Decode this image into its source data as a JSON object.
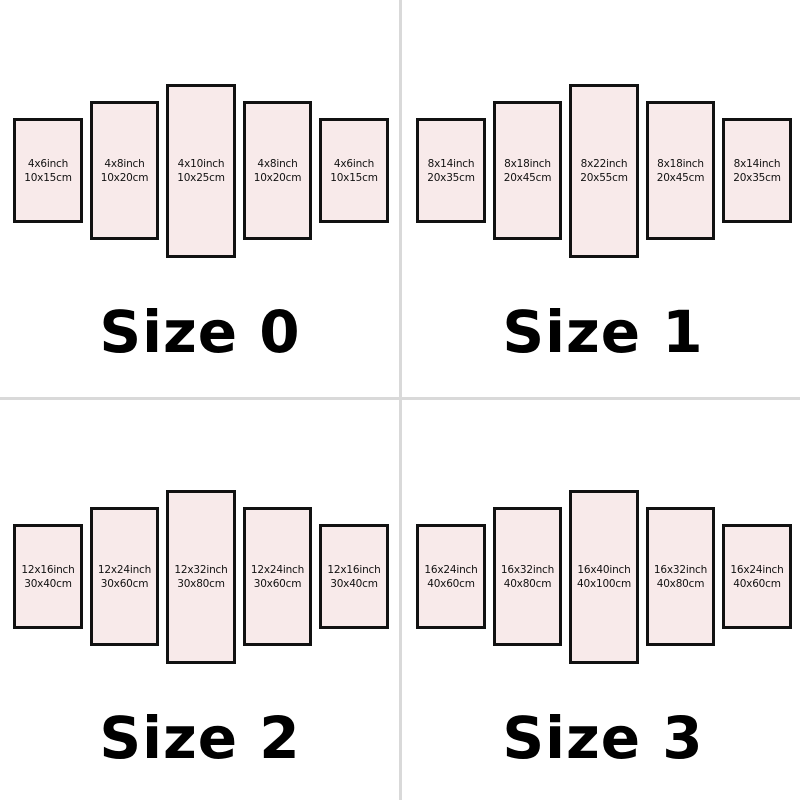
{
  "colors": {
    "panel_fill": "#f8eaea",
    "panel_border": "#111111",
    "divider": "#d9d9d9"
  },
  "sizes": [
    {
      "label": "Size 0",
      "panels": [
        {
          "inch": "4x6inch",
          "cm": "10x15cm"
        },
        {
          "inch": "4x8inch",
          "cm": "10x20cm"
        },
        {
          "inch": "4x10inch",
          "cm": "10x25cm"
        },
        {
          "inch": "4x8inch",
          "cm": "10x20cm"
        },
        {
          "inch": "4x6inch",
          "cm": "10x15cm"
        }
      ]
    },
    {
      "label": "Size 1",
      "panels": [
        {
          "inch": "8x14inch",
          "cm": "20x35cm"
        },
        {
          "inch": "8x18inch",
          "cm": "20x45cm"
        },
        {
          "inch": "8x22inch",
          "cm": "20x55cm"
        },
        {
          "inch": "8x18inch",
          "cm": "20x45cm"
        },
        {
          "inch": "8x14inch",
          "cm": "20x35cm"
        }
      ]
    },
    {
      "label": "Size 2",
      "panels": [
        {
          "inch": "12x16inch",
          "cm": "30x40cm"
        },
        {
          "inch": "12x24inch",
          "cm": "30x60cm"
        },
        {
          "inch": "12x32inch",
          "cm": "30x80cm"
        },
        {
          "inch": "12x24inch",
          "cm": "30x60cm"
        },
        {
          "inch": "12x16inch",
          "cm": "30x40cm"
        }
      ]
    },
    {
      "label": "Size 3",
      "panels": [
        {
          "inch": "16x24inch",
          "cm": "40x60cm"
        },
        {
          "inch": "16x32inch",
          "cm": "40x80cm"
        },
        {
          "inch": "16x40inch",
          "cm": "40x100cm"
        },
        {
          "inch": "16x32inch",
          "cm": "40x80cm"
        },
        {
          "inch": "16x24inch",
          "cm": "40x60cm"
        }
      ]
    }
  ]
}
